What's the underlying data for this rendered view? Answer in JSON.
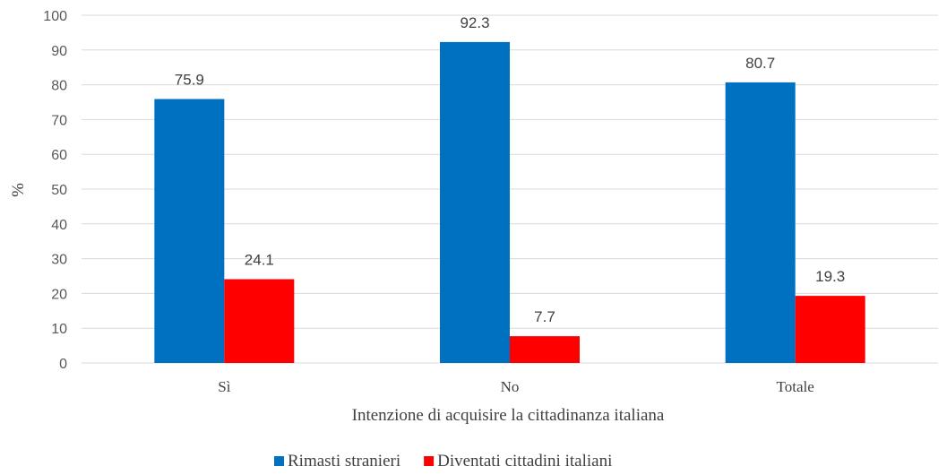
{
  "chart_data": {
    "type": "bar",
    "xlabel": "Intenzione di acquisire la cittadinanza italiana",
    "ylabel": "%",
    "ylim": [
      0,
      100
    ],
    "yticks": [
      0,
      10,
      20,
      30,
      40,
      50,
      60,
      70,
      80,
      90,
      100
    ],
    "categories": [
      "Sì",
      "No",
      "Totale"
    ],
    "series": [
      {
        "name": "Rimasti stranieri",
        "color": "#0070c0",
        "values": [
          75.9,
          92.3,
          80.7
        ]
      },
      {
        "name": "Diventati cittadini italiani",
        "color": "#ff0000",
        "values": [
          24.1,
          7.7,
          19.3
        ]
      }
    ],
    "grid": true,
    "legend": "bottom"
  }
}
